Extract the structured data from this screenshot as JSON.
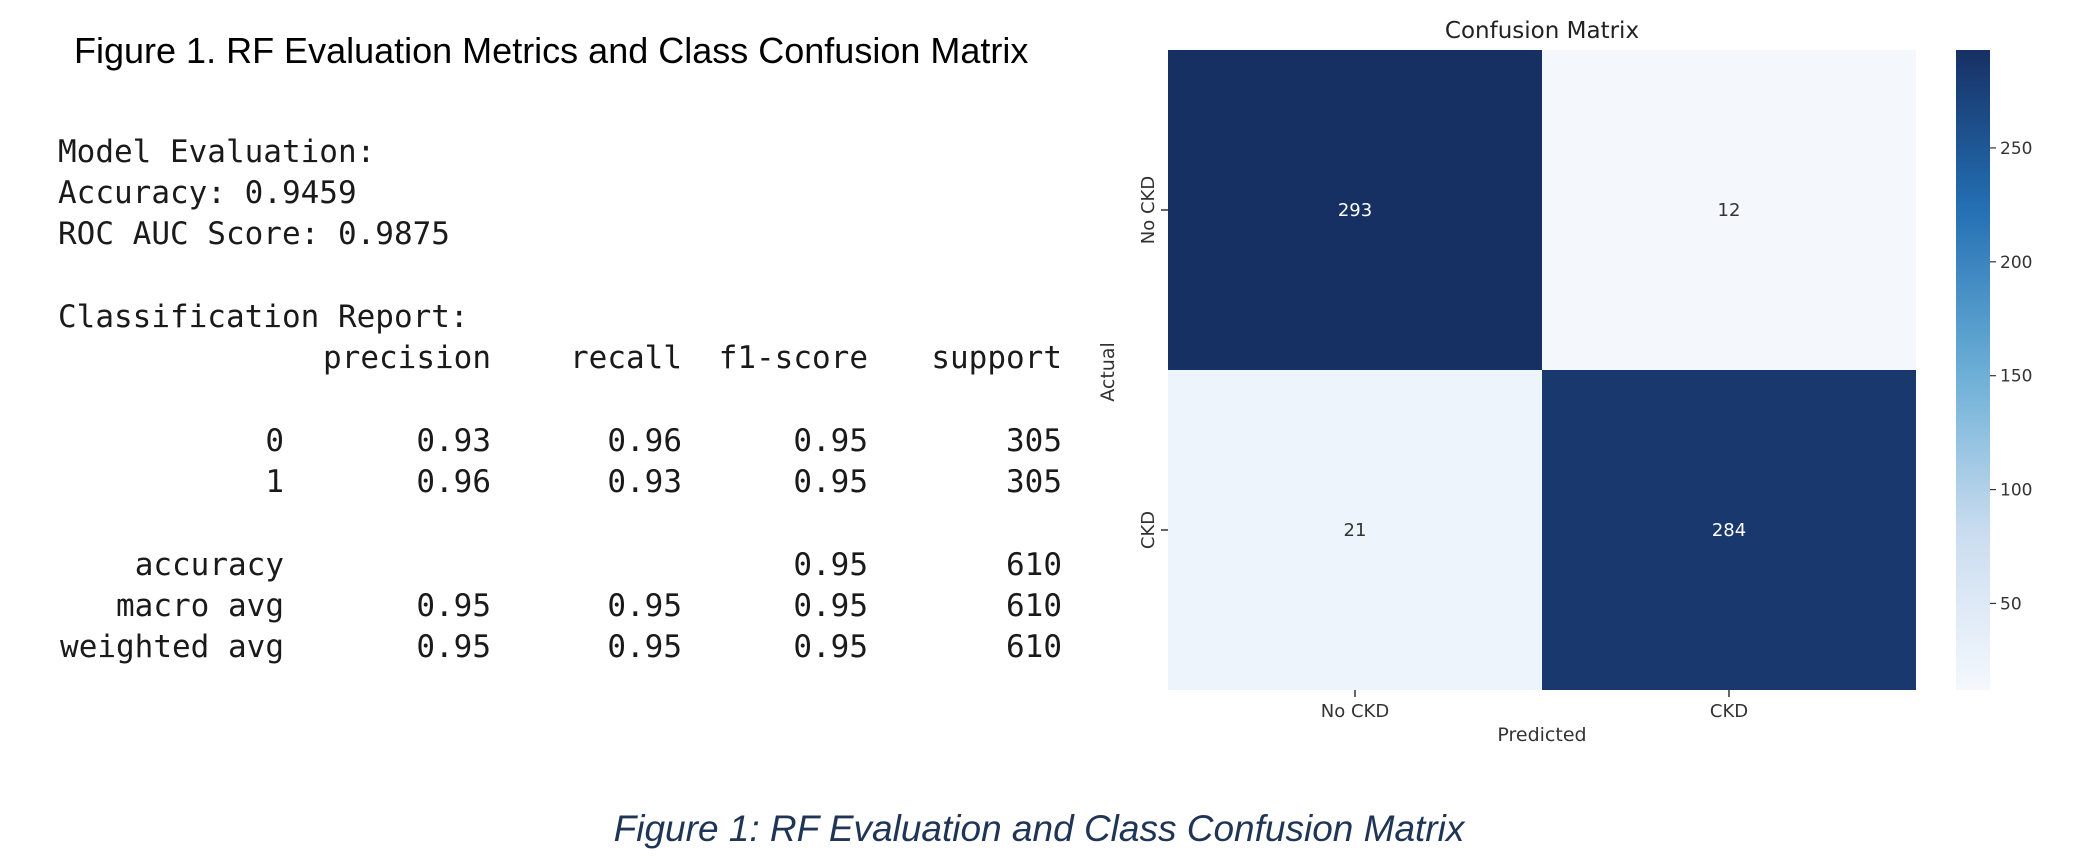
{
  "figure_title": "Figure 1. RF Evaluation Metrics and Class Confusion Matrix",
  "report": {
    "heading": "Model Evaluation:",
    "accuracy_line": "Accuracy: 0.9459",
    "roc_line": "ROC AUC Score: 0.9875",
    "classification_heading": "Classification Report:",
    "columns": [
      "precision",
      "recall",
      "f1-score",
      "support"
    ],
    "rows": [
      {
        "label": "0",
        "precision": "0.93",
        "recall": "0.96",
        "f1": "0.95",
        "support": "305"
      },
      {
        "label": "1",
        "precision": "0.96",
        "recall": "0.93",
        "f1": "0.95",
        "support": "305"
      },
      {
        "label": "accuracy",
        "precision": "",
        "recall": "",
        "f1": "0.95",
        "support": "610"
      },
      {
        "label": "macro avg",
        "precision": "0.95",
        "recall": "0.95",
        "f1": "0.95",
        "support": "610"
      },
      {
        "label": "weighted avg",
        "precision": "0.95",
        "recall": "0.95",
        "f1": "0.95",
        "support": "610"
      }
    ]
  },
  "chart_data": {
    "type": "heatmap",
    "title": "Confusion Matrix",
    "xlabel": "Predicted",
    "ylabel": "Actual",
    "x_categories": [
      "No CKD",
      "CKD"
    ],
    "y_categories": [
      "No CKD",
      "CKD"
    ],
    "values": [
      [
        293,
        12
      ],
      [
        21,
        284
      ]
    ],
    "colorbar": {
      "ticks": [
        50,
        100,
        150,
        200,
        250
      ],
      "min": 12,
      "max": 293,
      "colormap": "Blues",
      "low_color": "#f4f8fd",
      "high_color": "#163064"
    },
    "grid": false
  },
  "caption": "Figure 1: RF Evaluation and Class Confusion Matrix"
}
